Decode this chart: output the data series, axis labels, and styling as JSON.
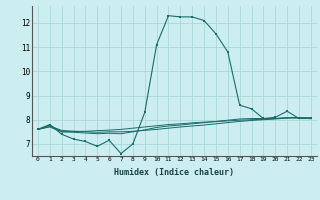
{
  "xlabel": "Humidex (Indice chaleur)",
  "bg_color": "#cceef0",
  "grid_color": "#aad8da",
  "line_color": "#1a6b6b",
  "xlim": [
    -0.5,
    23.5
  ],
  "ylim": [
    6.5,
    12.7
  ],
  "xticks": [
    0,
    1,
    2,
    3,
    4,
    5,
    6,
    7,
    8,
    9,
    10,
    11,
    12,
    13,
    14,
    15,
    16,
    17,
    18,
    19,
    20,
    21,
    22,
    23
  ],
  "yticks": [
    7,
    8,
    9,
    10,
    11,
    12
  ],
  "series": [
    [
      7.6,
      7.8,
      7.4,
      7.2,
      7.1,
      6.9,
      7.15,
      6.6,
      7.0,
      8.3,
      11.1,
      12.3,
      12.25,
      12.25,
      12.1,
      11.55,
      10.8,
      8.6,
      8.45,
      8.05,
      8.1,
      8.35,
      8.05,
      8.05
    ],
    [
      7.6,
      7.78,
      7.5,
      7.52,
      7.52,
      7.55,
      7.57,
      7.6,
      7.65,
      7.7,
      7.75,
      7.8,
      7.83,
      7.87,
      7.9,
      7.92,
      7.95,
      7.98,
      8.0,
      8.02,
      8.05,
      8.08,
      8.08,
      8.08
    ],
    [
      7.6,
      7.73,
      7.56,
      7.52,
      7.5,
      7.48,
      7.5,
      7.5,
      7.52,
      7.56,
      7.6,
      7.65,
      7.7,
      7.74,
      7.78,
      7.83,
      7.88,
      7.93,
      7.97,
      8.0,
      8.03,
      8.07,
      8.08,
      8.07
    ],
    [
      7.6,
      7.7,
      7.5,
      7.48,
      7.45,
      7.42,
      7.44,
      7.42,
      7.5,
      7.58,
      7.68,
      7.74,
      7.78,
      7.83,
      7.88,
      7.93,
      7.98,
      8.03,
      8.05,
      8.05,
      8.05,
      8.08,
      8.08,
      8.04
    ]
  ]
}
